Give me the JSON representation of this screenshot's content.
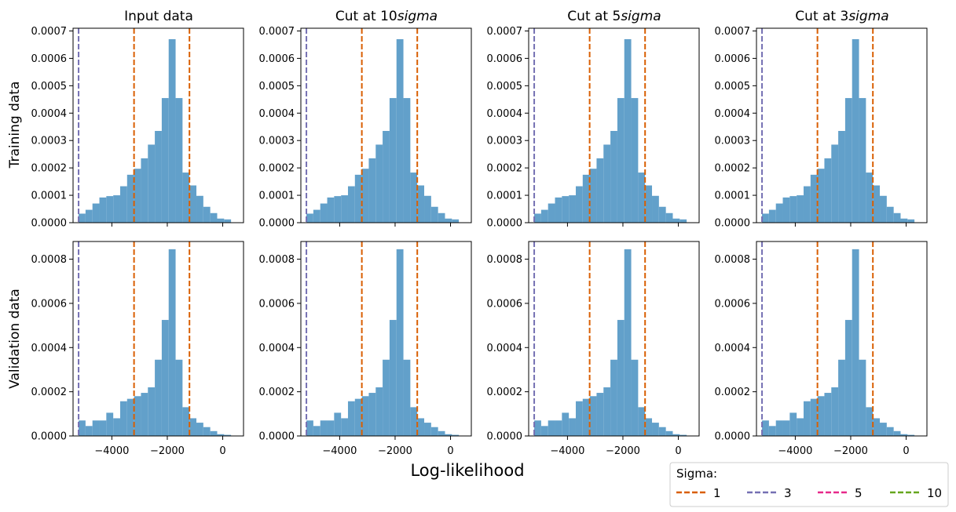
{
  "figure": {
    "xlabel": "Log-likelihood",
    "row_labels": [
      "Training data",
      "Validation data"
    ],
    "column_titles": [
      {
        "prefix": "Input data",
        "italic": ""
      },
      {
        "prefix": "Cut at 10",
        "italic": "sigma"
      },
      {
        "prefix": "Cut at 5",
        "italic": "sigma"
      },
      {
        "prefix": "Cut at 3",
        "italic": "sigma"
      }
    ]
  },
  "legend": {
    "title": "Sigma:",
    "placement": "bottom-right",
    "entries": [
      {
        "label": "1",
        "color": "#d95f02"
      },
      {
        "label": "3",
        "color": "#7570b3"
      },
      {
        "label": "5",
        "color": "#e7298a"
      },
      {
        "label": "10",
        "color": "#66a61e"
      }
    ]
  },
  "chart_data": {
    "type": "bar",
    "subtype": "histogram-grid",
    "bar_color": "#62a0ca",
    "xlim": [
      -5400,
      750
    ],
    "xticks": [
      -4000,
      -2000,
      0
    ],
    "xtick_labels": [
      "−4000",
      "−2000",
      "0"
    ],
    "bin_edges": [
      -5200,
      -4950,
      -4700,
      -4450,
      -4200,
      -3950,
      -3700,
      -3450,
      -3200,
      -2950,
      -2700,
      -2450,
      -2200,
      -1950,
      -1700,
      -1450,
      -1200,
      -950,
      -700,
      -450,
      -200,
      50,
      300,
      550
    ],
    "vlines": [
      {
        "x": -5200,
        "sigma": "3",
        "color": "#7570b3"
      },
      {
        "x": -3200,
        "sigma": "1",
        "color": "#d95f02"
      },
      {
        "x": -1200,
        "sigma": "1",
        "color": "#d95f02"
      }
    ],
    "rows": [
      {
        "name": "Training data",
        "ylim": [
          0,
          0.00071
        ],
        "yticks": [
          0,
          0.0001,
          0.0002,
          0.0003,
          0.0004,
          0.0005,
          0.0006,
          0.0007
        ],
        "ytick_labels": [
          "0.0000",
          "0.0001",
          "0.0002",
          "0.0003",
          "0.0004",
          "0.0005",
          "0.0006",
          "0.0007"
        ],
        "values": [
          3.3e-05,
          4.7e-05,
          7e-05,
          9.2e-05,
          9.7e-05,
          0.0001,
          0.000133,
          0.000175,
          0.000197,
          0.000235,
          0.000285,
          0.000335,
          0.000455,
          0.00067,
          0.000455,
          0.000183,
          0.000136,
          9.8e-05,
          5.8e-05,
          3.5e-05,
          1.5e-05,
          1.2e-05,
          0.0
        ]
      },
      {
        "name": "Validation data",
        "ylim": [
          0,
          0.00088
        ],
        "yticks": [
          0,
          0.0002,
          0.0004,
          0.0006,
          0.0008
        ],
        "ytick_labels": [
          "0.0000",
          "0.0002",
          "0.0004",
          "0.0006",
          "0.0008"
        ],
        "values": [
          7e-05,
          4.5e-05,
          7e-05,
          7e-05,
          0.000105,
          8e-05,
          0.000157,
          0.000168,
          0.00018,
          0.000195,
          0.00022,
          0.000345,
          0.000525,
          0.000845,
          0.000345,
          0.00013,
          8e-05,
          6e-05,
          4e-05,
          2.2e-05,
          8e-06,
          5e-06,
          0.0
        ]
      }
    ]
  }
}
